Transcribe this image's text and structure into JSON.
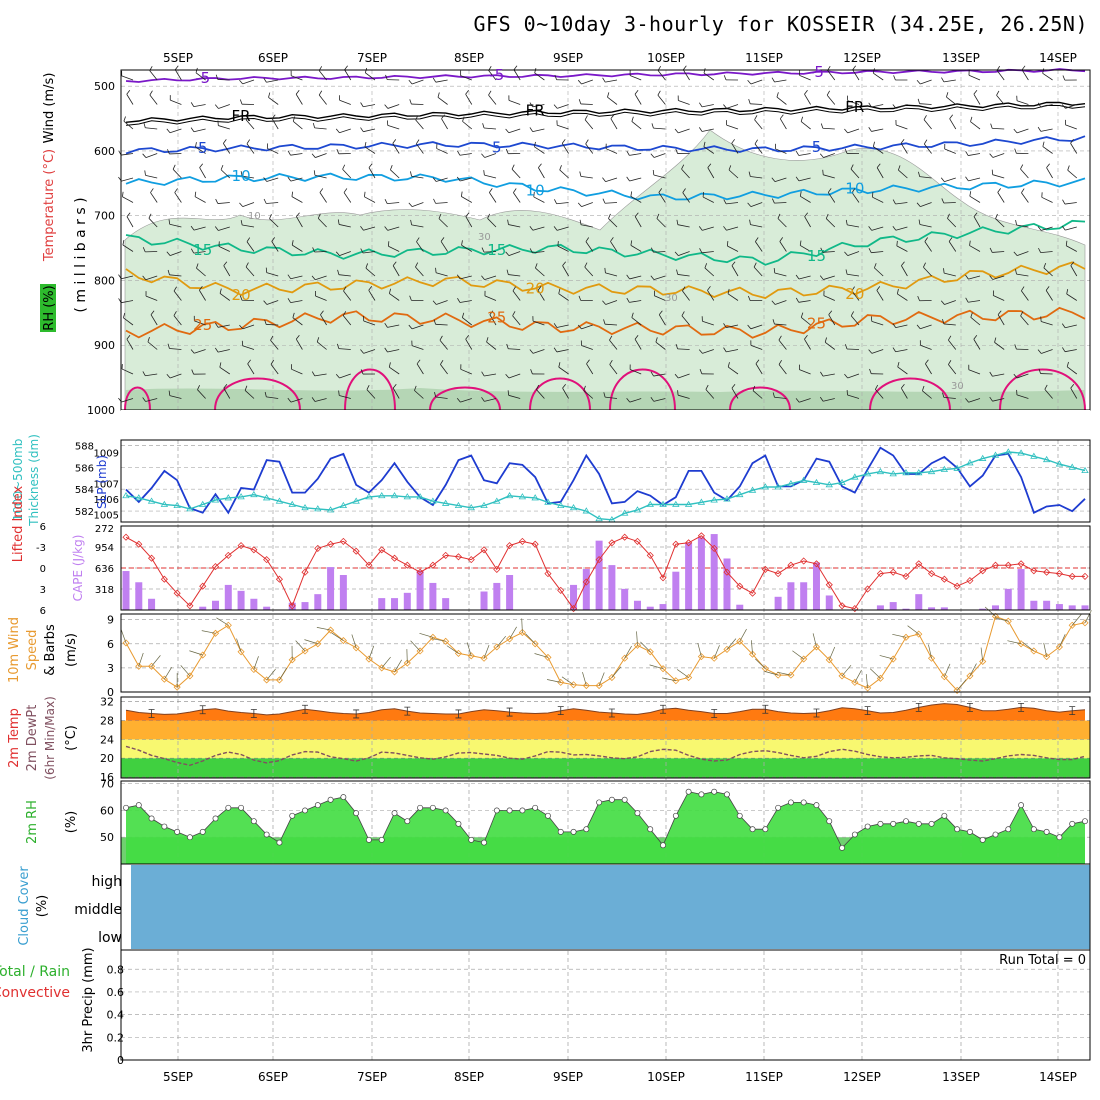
{
  "title": "GFS 0~10day 3-hourly for KOSSEIR (34.25E, 26.25N)",
  "dates": [
    "5SEP",
    "6SEP",
    "7SEP",
    "8SEP",
    "9SEP",
    "10SEP",
    "11SEP",
    "12SEP",
    "13SEP",
    "14SEP"
  ],
  "panel_labels": {
    "upper_rh": "RH (%)",
    "upper_temp": "Temperature (°C)",
    "upper_wind": "Wind (m/s)",
    "upper_units": "( m i l l i b a r s )",
    "thick_a": "1000~500mb",
    "thick_b": "Thickness (dm)",
    "slp": "SLP (mb)",
    "li": "Lifted Index",
    "cape": "CAPE (J/kg)",
    "wind_a": "10m Wind",
    "wind_b": "Speed",
    "wind_c": "& Barbs",
    "wind_unit": "(m/s)",
    "temp_a": "2m Temp",
    "temp_b": "2m DewPt",
    "temp_c": "(6hr Min/Max)",
    "temp_unit": "(°C)",
    "rh_a": "2m RH",
    "rh_unit": "(%)",
    "cloud_a": "Cloud Cover",
    "cloud_unit": "(%)",
    "cloud_high": "high",
    "cloud_middle": "middle",
    "cloud_low": "low",
    "precip_a": "Total / Rain",
    "precip_b": "Convective",
    "precip_c": "3hr Precip (mm)",
    "run_total": "Run Total = 0"
  },
  "colors": {
    "rh_fill": "#d8ecd8",
    "rh_fill_dark": "#b5d6b5",
    "t_m5": "#7a18c8",
    "t_fr": "#000000",
    "t_5": "#1d48d0",
    "t_10": "#109ee0",
    "t_15": "#10b888",
    "t_20": "#e09a10",
    "t_25": "#e06a10",
    "t_30": "#e0107a",
    "slp": "#1e3cd0",
    "thick": "#30c0c0",
    "li": "#e03030",
    "cape": "#c080f0",
    "wind": "#e89a30",
    "temp_band_hi": "#ff7a10",
    "temp_band_mid": "#ffb030",
    "temp_band_yel": "#f8f870",
    "temp_band_grn": "#40d040",
    "dewpt": "#805060",
    "rh2m": "#40dd40",
    "rh2m_bg": "#70d070",
    "cloud": "#6baed6"
  },
  "chart_data": [
    {
      "panel": "upper-air",
      "type": "contour",
      "y_axis": "Pressure (mb)",
      "yticks": [
        500,
        600,
        700,
        800,
        900,
        1000
      ],
      "isotherms": [
        {
          "label": "-5",
          "level": -5,
          "pressure": [
            492,
            488,
            487,
            485,
            484,
            482,
            480,
            478,
            477,
            475
          ]
        },
        {
          "label": "FR",
          "level": 0,
          "pressure": [
            553,
            548,
            546,
            543,
            540,
            538,
            536,
            533,
            530,
            526
          ]
        },
        {
          "label": "5",
          "level": 5,
          "pressure": [
            600,
            596,
            593,
            590,
            592,
            596,
            598,
            594,
            588,
            580
          ]
        },
        {
          "label": "10",
          "level": 10,
          "pressure": [
            650,
            642,
            640,
            642,
            660,
            672,
            668,
            660,
            654,
            648
          ]
        },
        {
          "label": "15",
          "level": 15,
          "pressure": [
            735,
            750,
            760,
            755,
            750,
            760,
            770,
            740,
            725,
            712
          ]
        },
        {
          "label": "20",
          "level": 20,
          "pressure": [
            790,
            815,
            808,
            800,
            812,
            815,
            820,
            812,
            790,
            778
          ]
        },
        {
          "label": "25",
          "level": 25,
          "pressure": [
            880,
            870,
            855,
            860,
            872,
            875,
            880,
            860,
            855,
            850
          ]
        }
      ],
      "rh_labels": [
        "10",
        "30",
        "30",
        "30"
      ]
    },
    {
      "panel": "thickness-slp",
      "type": "line",
      "yticks_left": [
        582,
        584,
        586,
        588
      ],
      "yticks_right": [
        1005,
        1006,
        1007,
        1009
      ],
      "series": [
        {
          "name": "SLP (mb)",
          "values": [
            1006.6,
            1005.8,
            1006.7,
            1007.8,
            1007.2,
            1005.4,
            1005.1,
            1006.3,
            1005.1,
            1006.7,
            1006.6,
            1008.5,
            1008.4,
            1006.4,
            1006.4,
            1007.3,
            1008.6,
            1008.9,
            1006.9,
            1006.4,
            1007.2,
            1008.3,
            1007.1,
            1006.1,
            1005.6,
            1006.9,
            1008.5,
            1008.8,
            1007.2,
            1007.0,
            1008.3,
            1008.2,
            1007.4,
            1005.7,
            1005.8,
            1007.2,
            1008.8,
            1007.6,
            1005.7,
            1005.8,
            1006.5,
            1006.2,
            1005.6,
            1006.1,
            1007.8,
            1007.8,
            1006.4,
            1005.9,
            1006.8,
            1008.3,
            1008.8,
            1006.8,
            1006.8,
            1007.2,
            1008.6,
            1008.4,
            1006.8,
            1006.4,
            1007.9,
            1009.3,
            1008.8,
            1007.6,
            1007.6,
            1008.3,
            1008.7,
            1008.0,
            1006.8,
            1007.5,
            1008.8,
            1008.9,
            1007.4,
            1005.1,
            1005.5,
            1005.6,
            1005.2,
            1006.0
          ]
        },
        {
          "name": "1000~500mb Thickness (dm)",
          "values": [
            583.4,
            583.2,
            582.9,
            582.6,
            582.5,
            582.2,
            582.6,
            583.0,
            583.2,
            583.3,
            583.5,
            583.2,
            582.9,
            582.6,
            582.3,
            582.2,
            582.1,
            582.5,
            582.9,
            583.3,
            583.4,
            583.4,
            583.3,
            583.3,
            582.9,
            582.7,
            582.5,
            582.3,
            582.5,
            582.9,
            583.4,
            583.3,
            583.2,
            582.8,
            582.5,
            582.3,
            582.0,
            581.3,
            581.2,
            581.8,
            582.1,
            582.6,
            582.6,
            582.6,
            582.6,
            582.8,
            583.0,
            583.1,
            583.5,
            583.9,
            584.2,
            584.2,
            584.5,
            584.8,
            584.6,
            584.4,
            584.6,
            585.1,
            585.4,
            585.6,
            585.4,
            585.5,
            585.5,
            585.6,
            585.8,
            585.9,
            586.4,
            586.8,
            587.1,
            587.4,
            587.3,
            587.0,
            586.7,
            586.3,
            586.0,
            585.7
          ]
        }
      ]
    },
    {
      "panel": "li-cape",
      "type": "bar",
      "yticks_left": [
        -6,
        -3,
        0,
        3,
        6
      ],
      "yticks_right": [
        272,
        954,
        636,
        318
      ],
      "series": [
        {
          "name": "CAPE (J/kg)",
          "values": [
            590,
            420,
            170,
            0,
            0,
            0,
            50,
            140,
            380,
            290,
            170,
            50,
            0,
            110,
            120,
            240,
            650,
            530,
            0,
            0,
            180,
            180,
            260,
            600,
            410,
            180,
            0,
            0,
            280,
            410,
            530,
            0,
            0,
            0,
            0,
            380,
            620,
            1050,
            680,
            320,
            140,
            50,
            90,
            580,
            1020,
            1100,
            1150,
            780,
            80,
            0,
            0,
            200,
            420,
            420,
            720,
            220,
            0,
            0,
            0,
            70,
            120,
            20,
            240,
            40,
            40,
            0,
            0,
            20,
            70,
            320,
            620,
            140,
            140,
            90,
            70,
            70
          ]
        },
        {
          "name": "Lifted Index",
          "values": [
            -4.4,
            -3.4,
            -1.4,
            1.6,
            3.6,
            5.4,
            2.6,
            -0.2,
            -1.8,
            -3.2,
            -2.6,
            -1.2,
            1.6,
            5.4,
            0.6,
            -2.8,
            -3.4,
            -3.8,
            -2.4,
            -0.4,
            -2.6,
            -1.4,
            -0.4,
            0.6,
            -0.4,
            -1.8,
            -1.6,
            -1.2,
            -2.6,
            0.2,
            -3.2,
            -3.8,
            -3.4,
            0.8,
            3.2,
            5.8,
            2.0,
            -1.2,
            -3.6,
            -4.4,
            -3.8,
            -1.8,
            1.4,
            -3.4,
            -3.6,
            -4.6,
            -2.8,
            0.6,
            2.6,
            3.6,
            0.2,
            0.8,
            -0.4,
            -1.0,
            -0.6,
            2.4,
            5.4,
            5.8,
            3.0,
            0.8,
            0.6,
            1.2,
            -0.6,
            0.8,
            1.6,
            2.6,
            1.8,
            0.4,
            -0.4,
            -0.4,
            -0.6,
            0.4,
            0.6,
            0.8,
            1.2,
            1.2
          ]
        }
      ]
    },
    {
      "panel": "10m-wind",
      "type": "line",
      "yticks": [
        0,
        3,
        6,
        9
      ],
      "series": [
        {
          "name": "10m Wind Speed (m/s)",
          "values": [
            6.1,
            3.2,
            3.2,
            1.6,
            0.6,
            2.0,
            4.6,
            7.3,
            8.3,
            5.0,
            2.8,
            1.5,
            1.5,
            4.0,
            5.1,
            6.0,
            7.7,
            6.4,
            5.5,
            4.1,
            3.0,
            2.5,
            3.6,
            5.1,
            6.8,
            6.3,
            4.8,
            4.5,
            4.2,
            5.6,
            6.6,
            7.4,
            6.0,
            4.3,
            1.2,
            0.9,
            0.8,
            0.8,
            1.8,
            4.2,
            5.8,
            5.0,
            2.9,
            1.4,
            1.8,
            4.4,
            4.2,
            5.3,
            6.3,
            4.7,
            2.9,
            2.1,
            2.1,
            4.1,
            5.6,
            4.0,
            2.0,
            1.2,
            0.5,
            1.7,
            4.1,
            6.8,
            7.2,
            4.2,
            1.9,
            0.2,
            2.0,
            3.8,
            9.4,
            8.8,
            6.0,
            5.1,
            4.4,
            5.6,
            8.3,
            8.6
          ]
        }
      ]
    },
    {
      "panel": "2m-temp",
      "type": "area",
      "yticks": [
        16,
        20,
        24,
        28,
        32
      ],
      "series": [
        {
          "name": "2m Temp (°C)",
          "values": [
            30.2,
            29.7,
            29.5,
            29.3,
            29.4,
            29.8,
            30.3,
            30.5,
            30.0,
            29.7,
            29.5,
            29.2,
            29.4,
            29.9,
            30.4,
            30.1,
            29.7,
            29.5,
            29.4,
            29.7,
            30.3,
            30.5,
            30.0,
            29.6,
            29.5,
            29.4,
            29.4,
            29.9,
            30.3,
            30.1,
            29.8,
            29.6,
            29.5,
            29.6,
            30.1,
            30.5,
            30.2,
            29.8,
            29.6,
            29.4,
            29.3,
            29.7,
            30.4,
            30.6,
            30.2,
            29.9,
            29.5,
            29.5,
            29.9,
            30.4,
            30.4,
            29.9,
            29.6,
            29.5,
            29.6,
            30.1,
            30.7,
            30.5,
            30.1,
            29.6,
            29.7,
            30.2,
            30.8,
            31.3,
            31.6,
            31.4,
            30.8,
            30.1,
            30.1,
            30.4,
            30.8,
            30.6,
            30.1,
            29.8,
            30.1,
            30.3
          ]
        },
        {
          "name": "2m DewPt (°C)",
          "values": [
            22.5,
            21.7,
            20.6,
            19.9,
            19.1,
            18.5,
            19.4,
            20.6,
            21.3,
            20.8,
            19.6,
            19.0,
            19.5,
            20.7,
            21.4,
            21.3,
            20.3,
            19.9,
            19.4,
            20.1,
            21.3,
            21.1,
            20.6,
            20.1,
            19.8,
            20.3,
            21.1,
            21.2,
            20.9,
            20.6,
            20.0,
            19.8,
            20.5,
            21.4,
            21.3,
            20.7,
            20.8,
            20.5,
            20.1,
            19.9,
            20.3,
            21.4,
            21.9,
            21.7,
            20.6,
            19.8,
            19.4,
            19.6,
            20.8,
            21.4,
            21.6,
            21.2,
            20.6,
            20.1,
            20.4,
            21.4,
            21.9,
            21.5,
            20.8,
            20.3,
            20.1,
            20.2,
            20.5,
            20.6,
            20.1,
            19.9,
            19.6,
            19.4,
            19.9,
            20.5,
            20.8,
            20.6,
            20.1,
            19.7,
            19.7,
            20.4
          ]
        }
      ]
    },
    {
      "panel": "2m-rh",
      "type": "area",
      "yticks": [
        50,
        60,
        70
      ],
      "series": [
        {
          "name": "2m RH (%)",
          "values": [
            61,
            62,
            57,
            54,
            52,
            50,
            52,
            57,
            61,
            61,
            56,
            51,
            48,
            58,
            60,
            62,
            64,
            65,
            59,
            49,
            49,
            59,
            56,
            61,
            61,
            60,
            55,
            49,
            48,
            60,
            60,
            60,
            61,
            58,
            52,
            52,
            53,
            63,
            64,
            64,
            59,
            53,
            47,
            58,
            67,
            66,
            67,
            66,
            58,
            53,
            53,
            61,
            63,
            63,
            62,
            56,
            46,
            51,
            54,
            55,
            55,
            56,
            55,
            55,
            58,
            53,
            52,
            49,
            51,
            53,
            62,
            53,
            52,
            50,
            55,
            56
          ]
        }
      ]
    },
    {
      "panel": "cloud-cover",
      "type": "heatmap",
      "rows": [
        "high",
        "middle",
        "low"
      ],
      "values": [
        0,
        0,
        0
      ]
    },
    {
      "panel": "3hr-precip",
      "type": "bar",
      "yticks": [
        0,
        0.2,
        0.4,
        0.6,
        0.8
      ],
      "series": [
        {
          "name": "3hr Precip (mm)",
          "values": []
        }
      ],
      "run_total": 0
    }
  ]
}
